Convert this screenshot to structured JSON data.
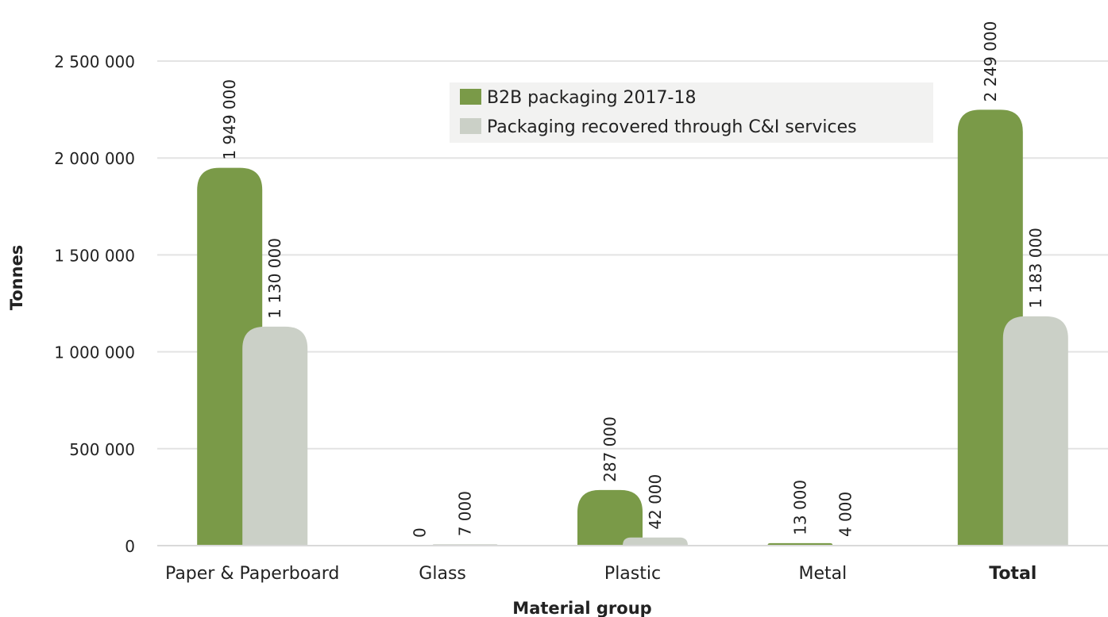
{
  "chart_data": {
    "type": "bar",
    "xlabel": "Material group",
    "ylabel": "Tonnes",
    "categories": [
      "Paper & Paperboard",
      "Glass",
      "Plastic",
      "Metal",
      "Total"
    ],
    "bold_categories": [
      "Total"
    ],
    "series": [
      {
        "name": "B2B packaging 2017-18",
        "color": "#7a9a48",
        "values": [
          1949000,
          0,
          287000,
          13000,
          2249000
        ],
        "labels": [
          "1 949 000",
          "0",
          "287 000",
          "13 000",
          "2 249 000"
        ]
      },
      {
        "name": "Packaging recovered through C&I services",
        "color": "#cbd0c7",
        "values": [
          1130000,
          7000,
          42000,
          4000,
          1183000
        ],
        "labels": [
          "1 130 000",
          "7 000",
          "42 000",
          "4 000",
          "1 183 000"
        ]
      }
    ],
    "ylim": [
      0,
      2500000
    ],
    "yticks": [
      0,
      500000,
      1000000,
      1500000,
      2000000,
      2500000
    ],
    "ytick_labels": [
      "0",
      "500 000",
      "1 000 000",
      "1 500 000",
      "2 000 000",
      "2 500 000"
    ],
    "grid": true,
    "legend_position": "top-center"
  }
}
